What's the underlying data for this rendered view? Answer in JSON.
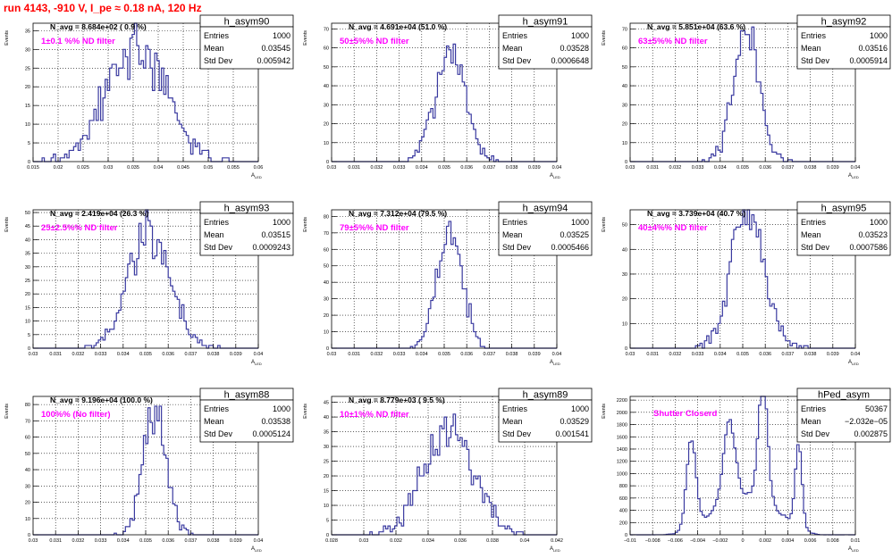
{
  "canvas_title": "run 4143,  -910 V, I_pe ≈ 0.18 nA, 120 Hz",
  "colors": {
    "line": "#3a3aa0",
    "annotation": "#ff00ff",
    "title": "#ff0000",
    "grid": "#000000"
  },
  "common": {
    "ylabel": "Events",
    "xlabel_main": "A",
    "xlabel_sub": "LED",
    "stats_labels": [
      "Entries",
      "Mean",
      "Std Dev"
    ]
  },
  "chart_data": [
    {
      "type": "histogram",
      "name": "h_asym90",
      "navg": "N_avg = 8.684e+02 ( 0.9 %)",
      "filter": "1±0.1 %% ND filter",
      "entries": "1000",
      "mean": "0.03545",
      "std": "0.005942",
      "xlim": [
        0.015,
        0.06
      ],
      "ylim": [
        0,
        37
      ],
      "xticks": [
        0.015,
        0.02,
        0.025,
        0.03,
        0.035,
        0.04,
        0.045,
        0.05,
        0.055,
        0.06
      ],
      "xtick_labels": [
        "0.015",
        "0.02",
        "0.025",
        "0.03",
        "0.035",
        "0.04",
        "0.045",
        "0.05",
        "0.055",
        "0.06"
      ],
      "yticks": [
        0,
        5,
        10,
        15,
        20,
        25,
        30,
        35
      ],
      "ytick_labels": [
        "0",
        "5",
        "10",
        "15",
        "20",
        "25",
        "30",
        "35"
      ],
      "hist": {
        "kind": "gauss",
        "mean": 0.03545,
        "sigma": 0.005942,
        "n": 1000,
        "bins": 100,
        "lo": 0.015,
        "hi": 0.06,
        "seed": 3
      }
    },
    {
      "type": "histogram",
      "name": "h_asym91",
      "navg": "N_avg = 4.691e+04 (51.0 %)",
      "filter": "50±5%% ND filter",
      "entries": "1000",
      "mean": "0.03528",
      "std": "0.0006648",
      "xlim": [
        0.03,
        0.04
      ],
      "ylim": [
        0,
        73
      ],
      "xticks": [
        0.03,
        0.031,
        0.032,
        0.033,
        0.034,
        0.035,
        0.036,
        0.037,
        0.038,
        0.039,
        0.04
      ],
      "xtick_labels": [
        "0.03",
        "0.031",
        "0.032",
        "0.033",
        "0.034",
        "0.035",
        "0.036",
        "0.037",
        "0.038",
        "0.039",
        "0.04"
      ],
      "yticks": [
        0,
        10,
        20,
        30,
        40,
        50,
        60,
        70
      ],
      "ytick_labels": [
        "0",
        "10",
        "20",
        "30",
        "40",
        "50",
        "60",
        "70"
      ],
      "hist": {
        "kind": "gauss",
        "mean": 0.03528,
        "sigma": 0.0006648,
        "n": 1000,
        "bins": 100,
        "lo": 0.03,
        "hi": 0.04,
        "seed": 7
      }
    },
    {
      "type": "histogram",
      "name": "h_asym92",
      "navg": "N_avg = 5.851e+04 (63.6 %)",
      "filter": "63±5%% ND filter",
      "entries": "1000",
      "mean": "0.03516",
      "std": "0.0005914",
      "xlim": [
        0.03,
        0.04
      ],
      "ylim": [
        0,
        73
      ],
      "xticks": [
        0.03,
        0.031,
        0.032,
        0.033,
        0.034,
        0.035,
        0.036,
        0.037,
        0.038,
        0.039,
        0.04
      ],
      "xtick_labels": [
        "0.03",
        "0.031",
        "0.032",
        "0.033",
        "0.034",
        "0.035",
        "0.036",
        "0.037",
        "0.038",
        "0.039",
        "0.04"
      ],
      "yticks": [
        0,
        10,
        20,
        30,
        40,
        50,
        60,
        70
      ],
      "ytick_labels": [
        "0",
        "10",
        "20",
        "30",
        "40",
        "50",
        "60",
        "70"
      ],
      "hist": {
        "kind": "gauss",
        "mean": 0.03516,
        "sigma": 0.0005914,
        "n": 1000,
        "bins": 100,
        "lo": 0.03,
        "hi": 0.04,
        "seed": 11
      }
    },
    {
      "type": "histogram",
      "name": "h_asym93",
      "navg": "N_avg = 2.419e+04 (26.3 %)",
      "filter": "25±2.5%% ND filter",
      "entries": "1000",
      "mean": "0.03515",
      "std": "0.0009243",
      "xlim": [
        0.03,
        0.04
      ],
      "ylim": [
        0,
        51
      ],
      "xticks": [
        0.03,
        0.031,
        0.032,
        0.033,
        0.034,
        0.035,
        0.036,
        0.037,
        0.038,
        0.039,
        0.04
      ],
      "xtick_labels": [
        "0.03",
        "0.031",
        "0.032",
        "0.033",
        "0.034",
        "0.035",
        "0.036",
        "0.037",
        "0.038",
        "0.039",
        "0.04"
      ],
      "yticks": [
        0,
        5,
        10,
        15,
        20,
        25,
        30,
        35,
        40,
        45,
        50
      ],
      "ytick_labels": [
        "0",
        "5",
        "10",
        "15",
        "20",
        "25",
        "30",
        "35",
        "40",
        "45",
        "50"
      ],
      "hist": {
        "kind": "gauss",
        "mean": 0.03515,
        "sigma": 0.0009243,
        "n": 1000,
        "bins": 100,
        "lo": 0.03,
        "hi": 0.04,
        "seed": 19
      }
    },
    {
      "type": "histogram",
      "name": "h_asym94",
      "navg": "N_avg = 7.312e+04 (79.5 %)",
      "filter": "79±5%% ND filter",
      "entries": "1000",
      "mean": "0.03525",
      "std": "0.0005466",
      "xlim": [
        0.03,
        0.04
      ],
      "ylim": [
        0,
        84
      ],
      "xticks": [
        0.03,
        0.031,
        0.032,
        0.033,
        0.034,
        0.035,
        0.036,
        0.037,
        0.038,
        0.039,
        0.04
      ],
      "xtick_labels": [
        "0.03",
        "0.031",
        "0.032",
        "0.033",
        "0.034",
        "0.035",
        "0.036",
        "0.037",
        "0.038",
        "0.039",
        "0.04"
      ],
      "yticks": [
        0,
        10,
        20,
        30,
        40,
        50,
        60,
        70,
        80
      ],
      "ytick_labels": [
        "0",
        "10",
        "20",
        "30",
        "40",
        "50",
        "60",
        "70",
        "80"
      ],
      "hist": {
        "kind": "gauss",
        "mean": 0.03525,
        "sigma": 0.0005466,
        "n": 1000,
        "bins": 100,
        "lo": 0.03,
        "hi": 0.04,
        "seed": 23
      }
    },
    {
      "type": "histogram",
      "name": "h_asym95",
      "navg": "N_avg = 3.739e+04 (40.7 %)",
      "filter": "40±4%% ND filter",
      "entries": "1000",
      "mean": "0.03523",
      "std": "0.0007586",
      "xlim": [
        0.03,
        0.04
      ],
      "ylim": [
        0,
        56
      ],
      "xticks": [
        0.03,
        0.031,
        0.032,
        0.033,
        0.034,
        0.035,
        0.036,
        0.037,
        0.038,
        0.039,
        0.04
      ],
      "xtick_labels": [
        "0.03",
        "0.031",
        "0.032",
        "0.033",
        "0.034",
        "0.035",
        "0.036",
        "0.037",
        "0.038",
        "0.039",
        "0.04"
      ],
      "yticks": [
        0,
        10,
        20,
        30,
        40,
        50
      ],
      "ytick_labels": [
        "0",
        "10",
        "20",
        "30",
        "40",
        "50"
      ],
      "hist": {
        "kind": "gauss",
        "mean": 0.03523,
        "sigma": 0.0007586,
        "n": 1000,
        "bins": 100,
        "lo": 0.03,
        "hi": 0.04,
        "seed": 29
      }
    },
    {
      "type": "histogram",
      "name": "h_asym88",
      "navg": "N_avg = 9.196e+04 (100.0 %)",
      "filter": "100%% (No filter)",
      "entries": "1000",
      "mean": "0.03538",
      "std": "0.0005124",
      "xlim": [
        0.03,
        0.04
      ],
      "ylim": [
        0,
        85
      ],
      "xticks": [
        0.03,
        0.031,
        0.032,
        0.033,
        0.034,
        0.035,
        0.036,
        0.037,
        0.038,
        0.039,
        0.04
      ],
      "xtick_labels": [
        "0.03",
        "0.031",
        "0.032",
        "0.033",
        "0.034",
        "0.035",
        "0.036",
        "0.037",
        "0.038",
        "0.039",
        "0.04"
      ],
      "yticks": [
        0,
        10,
        20,
        30,
        40,
        50,
        60,
        70,
        80
      ],
      "ytick_labels": [
        "0",
        "10",
        "20",
        "30",
        "40",
        "50",
        "60",
        "70",
        "80"
      ],
      "hist": {
        "kind": "gauss",
        "mean": 0.03538,
        "sigma": 0.0005124,
        "n": 1000,
        "bins": 100,
        "lo": 0.03,
        "hi": 0.04,
        "seed": 31
      }
    },
    {
      "type": "histogram",
      "name": "h_asym89",
      "navg": "N_avg = 8.779e+03 ( 9.5 %)",
      "filter": "10±1%% ND filter",
      "entries": "1000",
      "mean": "0.03529",
      "std": "0.001541",
      "xlim": [
        0.028,
        0.042
      ],
      "ylim": [
        0,
        47
      ],
      "xticks": [
        0.028,
        0.03,
        0.032,
        0.034,
        0.036,
        0.038,
        0.04,
        0.042
      ],
      "xtick_labels": [
        "0.028",
        "0.03",
        "0.032",
        "0.034",
        "0.036",
        "0.038",
        "0.04",
        "0.042"
      ],
      "yticks": [
        0,
        5,
        10,
        15,
        20,
        25,
        30,
        35,
        40,
        45
      ],
      "ytick_labels": [
        "0",
        "5",
        "10",
        "15",
        "20",
        "25",
        "30",
        "35",
        "40",
        "45"
      ],
      "hist": {
        "kind": "gauss",
        "mean": 0.03529,
        "sigma": 0.001541,
        "n": 1000,
        "bins": 100,
        "lo": 0.028,
        "hi": 0.042,
        "seed": 37
      }
    },
    {
      "type": "histogram",
      "name": "hPed_asym",
      "navg": "",
      "filter": "Shutter Closerd",
      "entries": "50367",
      "mean": "−2.032e−05",
      "std": "0.002875",
      "xlim": [
        -0.01,
        0.01
      ],
      "ylim": [
        0,
        2260
      ],
      "xticks": [
        -0.01,
        -0.008,
        -0.006,
        -0.004,
        -0.002,
        0,
        0.002,
        0.004,
        0.006,
        0.008,
        0.01
      ],
      "xtick_labels": [
        "−0.01",
        "−0.008",
        "−0.006",
        "−0.004",
        "−0.002",
        "0",
        "0.002",
        "0.004",
        "0.006",
        "0.008",
        "0.01"
      ],
      "yticks": [
        0,
        200,
        400,
        600,
        800,
        1000,
        1200,
        1400,
        1600,
        1800,
        2000,
        2200
      ],
      "ytick_labels": [
        "0",
        "200",
        "400",
        "600",
        "800",
        "1000",
        "1200",
        "1400",
        "1600",
        "1800",
        "2000",
        "2200"
      ],
      "hist": {
        "kind": "ped",
        "n": 50367,
        "bins": 100,
        "lo": -0.01,
        "hi": 0.01,
        "seed": 41,
        "components": [
          {
            "mu": -0.0046,
            "sigma": 0.00042,
            "peak": 1590
          },
          {
            "mu": -0.0012,
            "sigma": 0.00052,
            "peak": 1300
          },
          {
            "mu": 0.0018,
            "sigma": 0.0004,
            "peak": 2000
          },
          {
            "mu": 0.005,
            "sigma": 0.0003,
            "peak": 1650
          },
          {
            "mu": 0.0003,
            "sigma": 0.0028,
            "peak": 650
          }
        ]
      }
    }
  ]
}
